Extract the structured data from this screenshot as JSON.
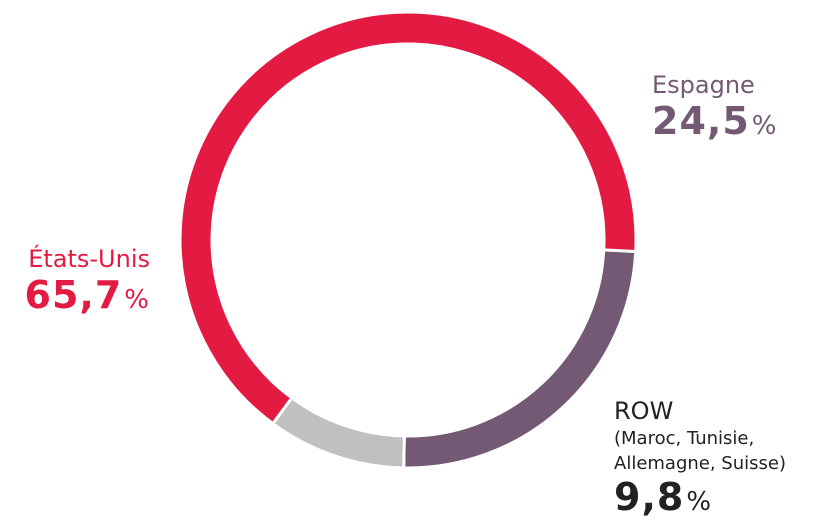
{
  "chart_data": {
    "type": "pie",
    "categories": [
      "États-Unis",
      "Espagne",
      "ROW"
    ],
    "values": [
      65.7,
      24.5,
      9.8
    ],
    "value_labels": [
      "65,7",
      "24,5",
      "9,8"
    ],
    "unit": "%",
    "sublabels": [
      "",
      "",
      "(Maroc, Tunisie, Allemagne, Suisse)"
    ],
    "colors": [
      "#E31A42",
      "#735973",
      "#C0C0C0"
    ],
    "donut": true
  }
}
